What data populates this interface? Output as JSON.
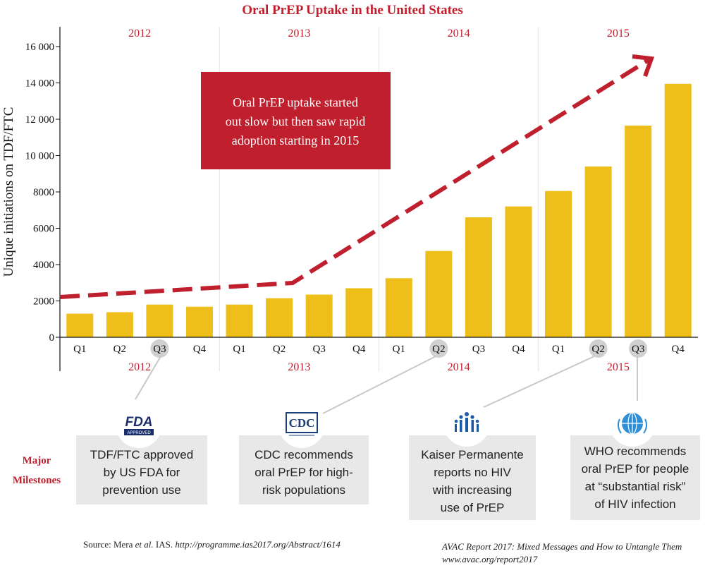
{
  "chart_data": {
    "type": "bar",
    "title": "Oral PrEP Uptake in the United States",
    "ylabel": "Unique initiations on TDF/FTC",
    "ylim": [
      0,
      16000
    ],
    "yticks": [
      "0",
      "2000",
      "4000",
      "6000",
      "8000",
      "10 000",
      "12 000",
      "14 000",
      "16 000"
    ],
    "ytick_values": [
      0,
      2000,
      4000,
      6000,
      8000,
      10000,
      12000,
      14000,
      16000
    ],
    "years": [
      "2012",
      "2013",
      "2014",
      "2015"
    ],
    "categories": [
      "Q1",
      "Q2",
      "Q3",
      "Q4",
      "Q1",
      "Q2",
      "Q3",
      "Q4",
      "Q1",
      "Q2",
      "Q3",
      "Q4",
      "Q1",
      "Q2",
      "Q3",
      "Q4"
    ],
    "values": [
      1300,
      1380,
      1800,
      1680,
      1800,
      2150,
      2350,
      2700,
      3250,
      4750,
      6600,
      7200,
      8050,
      9400,
      11650,
      13950
    ],
    "bar_color": "#eebe1a",
    "highlighted_quarters": [
      2,
      9,
      13,
      14
    ],
    "trend_color": "#c0202e",
    "callout": {
      "lines": [
        "Oral PrEP uptake started",
        "out slow but then saw rapid",
        "adoption starting in 2015"
      ],
      "color": "#c0202e"
    }
  },
  "milestones": {
    "label_lines": [
      "Major",
      "Milestones"
    ],
    "items": [
      {
        "icon": "fda-approved-icon",
        "logo_text": "FDA",
        "logo_subtext": "APPROVED",
        "lines": [
          "TDF/FTC approved",
          "by US FDA for",
          "prevention use"
        ]
      },
      {
        "icon": "cdc-icon",
        "logo_text": "CDC",
        "lines": [
          "CDC recommends",
          "oral PrEP for high-",
          "risk populations"
        ]
      },
      {
        "icon": "kaiser-permanente-icon",
        "lines": [
          "Kaiser Permanente",
          "reports no HIV",
          "with increasing",
          "use of PrEP"
        ]
      },
      {
        "icon": "who-icon",
        "lines": [
          "WHO recommends",
          "oral PrEP for people",
          "at “substantial risk”",
          "of HIV infection"
        ]
      }
    ]
  },
  "source": {
    "prefix": "Source: Mera ",
    "italic1": "et al.",
    "mid": " IAS. ",
    "italic2": "http://programme.ias2017.org/Abstract/1614"
  },
  "credit": {
    "line1": "AVAC Report 2017: Mixed Messages and How to Untangle Them",
    "line2": "www.avac.org/report2017"
  }
}
